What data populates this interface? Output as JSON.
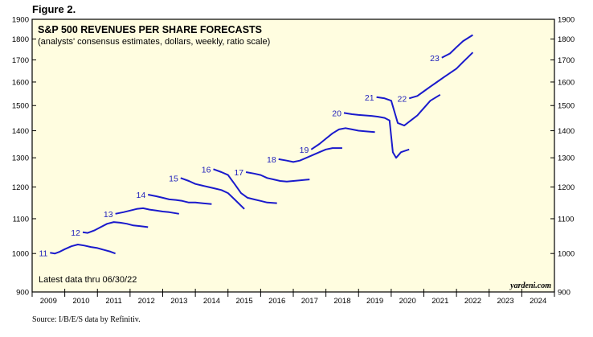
{
  "figure_label": "Figure 2.",
  "source": "Source: I/B/E/S data by Refinitiv.",
  "chart_data": {
    "type": "line",
    "title": "S&P 500 REVENUES PER SHARE FORECASTS",
    "subtitle": "(analysts' consensus estimates, dollars, weekly, ratio scale)",
    "note": "Latest data thru 06/30/22",
    "brand": "yardeni.com",
    "xlabel": "",
    "ylabel": "",
    "y_scale": "log",
    "ylim": [
      900,
      1900
    ],
    "xlim": [
      2009,
      2025
    ],
    "y_ticks": [
      900,
      1000,
      1100,
      1200,
      1300,
      1400,
      1500,
      1600,
      1700,
      1800,
      1900
    ],
    "x_tick_labels": [
      "2009",
      "2010",
      "2011",
      "2012",
      "2013",
      "2014",
      "2015",
      "2016",
      "2017",
      "2018",
      "2019",
      "2020",
      "2021",
      "2022",
      "2023",
      "2024"
    ],
    "colors": {
      "line": "#1a1acc",
      "label": "#2222bb",
      "plot_bg": "#fffde0",
      "frame": "#000000"
    },
    "series": [
      {
        "name": "11",
        "x": [
          2009.55,
          2009.7,
          2009.85,
          2010.0,
          2010.2,
          2010.4,
          2010.6,
          2010.8,
          2011.0,
          2011.2,
          2011.4,
          2011.55
        ],
        "y": [
          1002,
          1000,
          1005,
          1012,
          1020,
          1025,
          1022,
          1018,
          1015,
          1010,
          1005,
          1000
        ]
      },
      {
        "name": "12",
        "x": [
          2010.55,
          2010.7,
          2010.9,
          2011.1,
          2011.3,
          2011.5,
          2011.7,
          2011.9,
          2012.1,
          2012.3,
          2012.55
        ],
        "y": [
          1060,
          1058,
          1065,
          1075,
          1085,
          1090,
          1088,
          1085,
          1080,
          1078,
          1075
        ]
      },
      {
        "name": "13",
        "x": [
          2011.55,
          2011.8,
          2012.0,
          2012.2,
          2012.4,
          2012.6,
          2012.8,
          2013.0,
          2013.2,
          2013.5
        ],
        "y": [
          1115,
          1120,
          1125,
          1130,
          1132,
          1128,
          1125,
          1122,
          1120,
          1115
        ]
      },
      {
        "name": "14",
        "x": [
          2012.55,
          2012.8,
          2013.0,
          2013.2,
          2013.4,
          2013.6,
          2013.8,
          2014.0,
          2014.2,
          2014.5
        ],
        "y": [
          1175,
          1170,
          1165,
          1160,
          1158,
          1155,
          1150,
          1150,
          1148,
          1145
        ]
      },
      {
        "name": "15",
        "x": [
          2013.55,
          2013.8,
          2014.0,
          2014.2,
          2014.4,
          2014.6,
          2014.8,
          2015.0,
          2015.2,
          2015.5
        ],
        "y": [
          1230,
          1220,
          1210,
          1205,
          1200,
          1195,
          1190,
          1180,
          1160,
          1130
        ]
      },
      {
        "name": "16",
        "x": [
          2014.55,
          2014.8,
          2015.0,
          2015.2,
          2015.4,
          2015.6,
          2015.8,
          2016.0,
          2016.2,
          2016.5
        ],
        "y": [
          1260,
          1250,
          1240,
          1210,
          1180,
          1165,
          1160,
          1155,
          1150,
          1148
        ]
      },
      {
        "name": "17",
        "x": [
          2015.55,
          2015.8,
          2016.0,
          2016.2,
          2016.4,
          2016.6,
          2016.8,
          2017.0,
          2017.2,
          2017.5
        ],
        "y": [
          1250,
          1245,
          1240,
          1230,
          1225,
          1220,
          1218,
          1220,
          1222,
          1225
        ]
      },
      {
        "name": "18",
        "x": [
          2016.55,
          2016.8,
          2017.0,
          2017.2,
          2017.4,
          2017.6,
          2017.8,
          2018.0,
          2018.2,
          2018.5
        ],
        "y": [
          1295,
          1290,
          1285,
          1290,
          1300,
          1310,
          1320,
          1330,
          1335,
          1335
        ]
      },
      {
        "name": "19",
        "x": [
          2017.55,
          2017.8,
          2018.0,
          2018.2,
          2018.4,
          2018.6,
          2018.8,
          2019.0,
          2019.2,
          2019.5
        ],
        "y": [
          1330,
          1350,
          1370,
          1390,
          1405,
          1410,
          1405,
          1400,
          1398,
          1395
        ]
      },
      {
        "name": "20",
        "x": [
          2018.55,
          2018.8,
          2019.0,
          2019.2,
          2019.4,
          2019.6,
          2019.8,
          2019.95,
          2020.05,
          2020.15,
          2020.3,
          2020.55
        ],
        "y": [
          1470,
          1465,
          1462,
          1460,
          1458,
          1455,
          1450,
          1440,
          1320,
          1300,
          1320,
          1330
        ]
      },
      {
        "name": "21",
        "x": [
          2019.55,
          2019.8,
          2020.0,
          2020.2,
          2020.4,
          2020.6,
          2020.8,
          2021.0,
          2021.2,
          2021.5
        ],
        "y": [
          1535,
          1530,
          1520,
          1430,
          1420,
          1440,
          1460,
          1490,
          1520,
          1545
        ]
      },
      {
        "name": "22",
        "x": [
          2020.55,
          2020.8,
          2021.0,
          2021.2,
          2021.4,
          2021.6,
          2021.8,
          2022.0,
          2022.2,
          2022.4,
          2022.5
        ],
        "y": [
          1530,
          1540,
          1560,
          1580,
          1600,
          1620,
          1640,
          1660,
          1690,
          1720,
          1735
        ]
      },
      {
        "name": "23",
        "x": [
          2021.55,
          2021.8,
          2022.0,
          2022.2,
          2022.4,
          2022.5
        ],
        "y": [
          1710,
          1730,
          1760,
          1790,
          1810,
          1820
        ]
      }
    ]
  }
}
